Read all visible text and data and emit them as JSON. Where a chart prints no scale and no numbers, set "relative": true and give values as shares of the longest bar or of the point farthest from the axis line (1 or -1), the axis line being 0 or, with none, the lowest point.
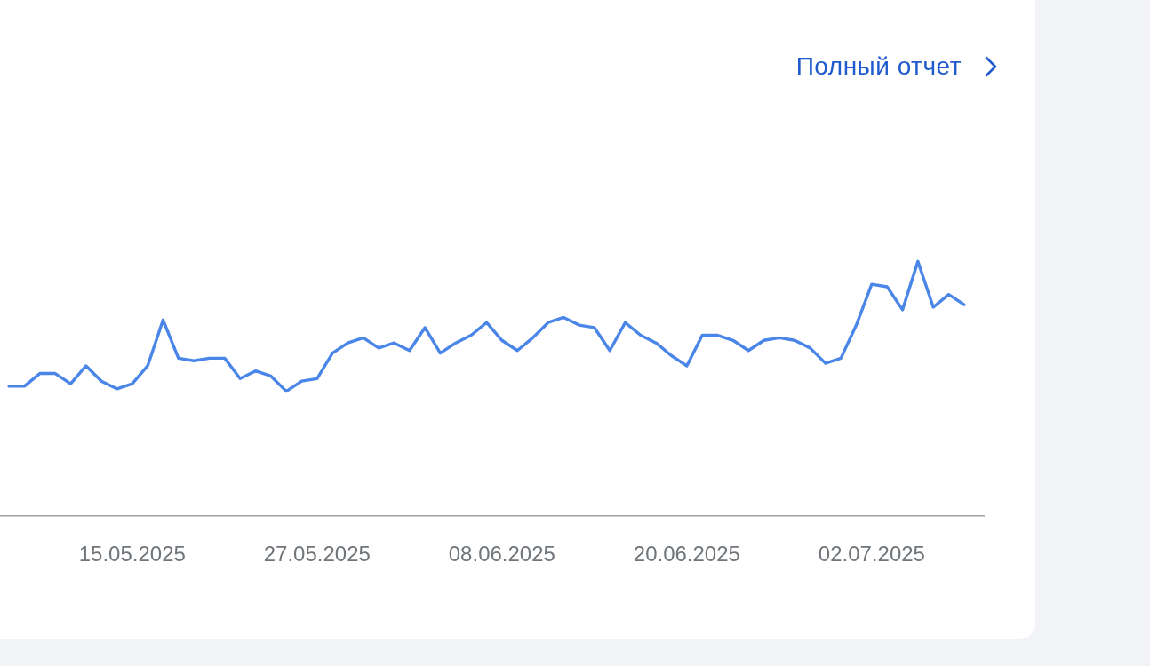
{
  "chart_data": {
    "type": "line",
    "relative": true,
    "color": "#4a86e8",
    "annotations": [
      "Полный отчет"
    ],
    "x": [
      "2025-05-07",
      "2025-05-08",
      "2025-05-09",
      "2025-05-10",
      "2025-05-11",
      "2025-05-12",
      "2025-05-13",
      "2025-05-14",
      "2025-05-15",
      "2025-05-16",
      "2025-05-17",
      "2025-05-18",
      "2025-05-19",
      "2025-05-20",
      "2025-05-21",
      "2025-05-22",
      "2025-05-23",
      "2025-05-24",
      "2025-05-25",
      "2025-05-26",
      "2025-05-27",
      "2025-05-28",
      "2025-05-29",
      "2025-05-30",
      "2025-05-31",
      "2025-06-01",
      "2025-06-02",
      "2025-06-03",
      "2025-06-04",
      "2025-06-05",
      "2025-06-06",
      "2025-06-07",
      "2025-06-08",
      "2025-06-09",
      "2025-06-10",
      "2025-06-11",
      "2025-06-12",
      "2025-06-13",
      "2025-06-14",
      "2025-06-15",
      "2025-06-16",
      "2025-06-17",
      "2025-06-18",
      "2025-06-19",
      "2025-06-20",
      "2025-06-21",
      "2025-06-22",
      "2025-06-23",
      "2025-06-24",
      "2025-06-25",
      "2025-06-26",
      "2025-06-27",
      "2025-06-28",
      "2025-06-29",
      "2025-06-30",
      "2025-07-01",
      "2025-07-02",
      "2025-07-03",
      "2025-07-04",
      "2025-07-05",
      "2025-07-06",
      "2025-07-07",
      "2025-07-08"
    ],
    "values": [
      0.51,
      0.51,
      0.56,
      0.56,
      0.52,
      0.59,
      0.53,
      0.5,
      0.52,
      0.59,
      0.77,
      0.62,
      0.61,
      0.62,
      0.62,
      0.54,
      0.57,
      0.55,
      0.49,
      0.53,
      0.54,
      0.64,
      0.68,
      0.7,
      0.66,
      0.68,
      0.65,
      0.74,
      0.64,
      0.68,
      0.71,
      0.76,
      0.69,
      0.65,
      0.7,
      0.76,
      0.78,
      0.75,
      0.74,
      0.65,
      0.76,
      0.71,
      0.68,
      0.63,
      0.59,
      0.71,
      0.71,
      0.69,
      0.65,
      0.69,
      0.7,
      0.69,
      0.66,
      0.6,
      0.62,
      0.75,
      0.91,
      0.9,
      0.81,
      1.0,
      0.82,
      0.87,
      0.83
    ],
    "xlim": [
      "2025-05-06T10:00",
      "2025-07-09T08:00"
    ],
    "xticks": [
      {
        "value": "2025-05-15",
        "label": "15.05.2025"
      },
      {
        "value": "2025-05-27",
        "label": "27.05.2025"
      },
      {
        "value": "2025-06-08",
        "label": "08.06.2025"
      },
      {
        "value": "2025-06-20",
        "label": "20.06.2025"
      },
      {
        "value": "2025-07-02",
        "label": "02.07.2025"
      }
    ]
  }
}
